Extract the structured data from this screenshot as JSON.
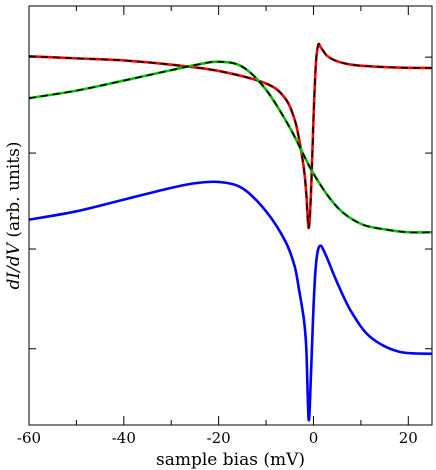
{
  "chart_data": {
    "type": "line",
    "title": "",
    "xlabel": "sample bias (mV)",
    "ylabel_italic": "dI/dV",
    "ylabel_rest": " (arb. units)",
    "xlim": [
      -60,
      25
    ],
    "xticks": [
      -60,
      -40,
      -20,
      0,
      20
    ],
    "xtick_labels": [
      "-60",
      "-40",
      "-20",
      "0",
      "20"
    ],
    "ylim": [
      0,
      10
    ],
    "yticks": [
      1.82,
      4.2,
      6.49,
      8.78
    ],
    "ytick_labels": [],
    "grid": false,
    "legend": "none",
    "series": [
      {
        "color": "#ff0000",
        "dash": "",
        "width": 2.6,
        "x": [
          -60,
          -50,
          -40,
          -30,
          -20,
          -10,
          -6,
          -4,
          -3,
          -2,
          -1.5,
          -1,
          -0.5,
          0,
          0.5,
          1,
          1.5,
          2,
          3,
          5,
          8,
          12,
          18,
          25
        ],
        "y": [
          8.8,
          8.75,
          8.7,
          8.6,
          8.45,
          8.15,
          7.8,
          7.3,
          6.8,
          6.1,
          5.5,
          4.7,
          5.6,
          7.3,
          8.6,
          9.07,
          9.02,
          8.94,
          8.8,
          8.68,
          8.6,
          8.56,
          8.53,
          8.52
        ]
      },
      {
        "color": "#000000",
        "dash": "7,5",
        "width": 1.6,
        "x": [
          -60,
          -50,
          -40,
          -30,
          -20,
          -10,
          -6,
          -4,
          -3,
          -2,
          -1.5,
          -1,
          -0.5,
          0,
          0.5,
          1,
          1.5,
          2,
          3,
          5,
          8,
          12,
          18,
          25
        ],
        "y": [
          8.8,
          8.75,
          8.7,
          8.6,
          8.45,
          8.15,
          7.8,
          7.3,
          6.8,
          6.1,
          5.5,
          4.7,
          5.6,
          7.3,
          8.6,
          9.07,
          9.02,
          8.94,
          8.8,
          8.68,
          8.6,
          8.56,
          8.53,
          8.52
        ]
      },
      {
        "color": "#00c000",
        "dash": "",
        "width": 2.6,
        "x": [
          -60,
          -50,
          -40,
          -30,
          -25,
          -20,
          -15,
          -10,
          -5,
          0,
          5,
          10,
          15,
          20,
          25
        ],
        "y": [
          7.8,
          7.98,
          8.22,
          8.47,
          8.59,
          8.67,
          8.55,
          8.0,
          7.1,
          6.0,
          5.2,
          4.8,
          4.67,
          4.6,
          4.6
        ]
      },
      {
        "color": "#000000",
        "dash": "7,5",
        "width": 1.6,
        "x": [
          -60,
          -50,
          -40,
          -30,
          -25,
          -20,
          -15,
          -10,
          -5,
          0,
          5,
          10,
          15,
          20,
          25
        ],
        "y": [
          7.8,
          7.98,
          8.22,
          8.47,
          8.59,
          8.67,
          8.55,
          8.0,
          7.1,
          6.0,
          5.2,
          4.8,
          4.67,
          4.6,
          4.6
        ]
      },
      {
        "color": "#0000ff",
        "dash": "",
        "width": 2.6,
        "x": [
          -60,
          -50,
          -40,
          -30,
          -25,
          -20,
          -15,
          -10,
          -6,
          -4,
          -3,
          -2,
          -1.5,
          -1,
          -0.5,
          0,
          0.5,
          1,
          1.5,
          2,
          3,
          5,
          8,
          12,
          18,
          25
        ],
        "y": [
          4.9,
          5.1,
          5.38,
          5.66,
          5.77,
          5.8,
          5.65,
          5.1,
          4.4,
          3.8,
          3.2,
          2.5,
          1.8,
          0.12,
          1.3,
          2.8,
          3.8,
          4.2,
          4.28,
          4.2,
          3.95,
          3.4,
          2.7,
          2.1,
          1.75,
          1.7
        ]
      }
    ]
  }
}
